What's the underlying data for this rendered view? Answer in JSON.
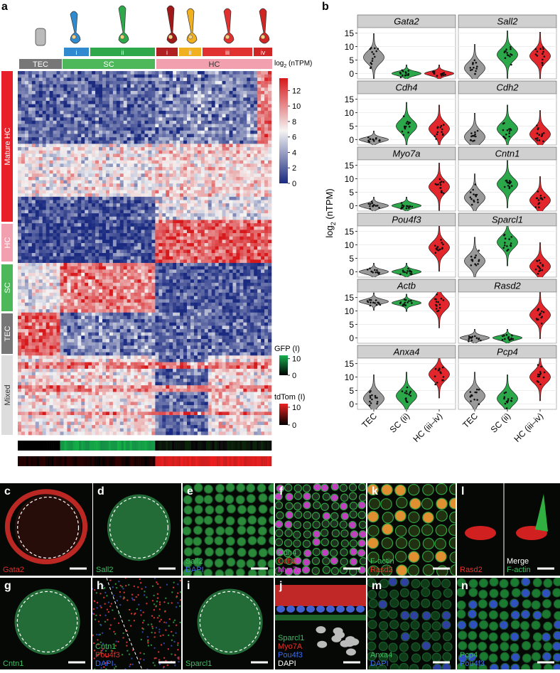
{
  "panel_a": {
    "label": "a",
    "top_groups": [
      "TEC",
      "SC",
      "HC"
    ],
    "sub_groups": [
      "i",
      "ii",
      "i",
      "ii",
      "iii",
      "iv"
    ],
    "row_groups": [
      "Mature HC",
      "HC",
      "SC",
      "TEC",
      "Mixed"
    ],
    "colorbar": {
      "title_main": "log",
      "title_sub": "2",
      "title_rest": " (nTPM)",
      "ticks": [
        0,
        2,
        4,
        6,
        8,
        10,
        12
      ],
      "lim": [
        0,
        13.6
      ]
    },
    "gfp": {
      "title": "GFP (I)",
      "ticks": [
        0,
        10
      ],
      "lim": [
        0,
        12
      ]
    },
    "tdtom": {
      "title": "tdTom (I)",
      "ticks": [
        0,
        10
      ],
      "lim": [
        0,
        12
      ]
    }
  },
  "panel_b": {
    "label": "b",
    "y_label_main": "log",
    "y_label_sub": "2",
    "y_label_rest": " (nTPM)",
    "yticks": [
      0,
      5,
      10,
      15
    ],
    "ylim": [
      -2,
      17
    ],
    "groups": [
      "TEC",
      "SC (ii)",
      "HC (iii–iv)"
    ],
    "colors": [
      "#9a9a9a",
      "#2ba84a",
      "#e3262b"
    ],
    "genes": [
      {
        "name": "Gata2",
        "medians": [
          6,
          0,
          0
        ]
      },
      {
        "name": "Sall2",
        "medians": [
          2,
          7,
          6.5
        ]
      },
      {
        "name": "Cdh4",
        "medians": [
          0,
          5,
          4
        ]
      },
      {
        "name": "Cdh2",
        "medians": [
          1,
          4,
          2
        ]
      },
      {
        "name": "Myo7a",
        "medians": [
          0,
          0,
          7
        ]
      },
      {
        "name": "Cntn1",
        "medians": [
          3,
          8,
          2
        ]
      },
      {
        "name": "Pou4f3",
        "medians": [
          0,
          0,
          9
        ]
      },
      {
        "name": "Sparcl1",
        "medians": [
          4,
          11,
          2
        ]
      },
      {
        "name": "Actb",
        "medians": [
          13.5,
          13,
          12.5
        ]
      },
      {
        "name": "Rasd2",
        "medians": [
          0,
          0,
          8.5
        ]
      },
      {
        "name": "Anxa4",
        "medians": [
          2,
          3,
          11
        ]
      },
      {
        "name": "Pcp4",
        "medians": [
          3,
          2,
          10
        ]
      }
    ]
  },
  "micrographs": [
    {
      "label": "c",
      "stains": [
        {
          "text": "Gata2",
          "color": "#e8302a"
        }
      ]
    },
    {
      "label": "d",
      "stains": [
        {
          "text": "Sall2",
          "color": "#3cc060"
        }
      ]
    },
    {
      "label": "e",
      "stains": [
        {
          "text": "Sall2",
          "color": "#3cc060"
        },
        {
          "text": "DAPI",
          "color": "#3c6cf0"
        }
      ]
    },
    {
      "label": "f",
      "stains": [
        {
          "text": "Cdh4",
          "color": "#3cc060"
        },
        {
          "text": "Cdh2",
          "color": "#e8302a"
        },
        {
          "text": "Myo7a",
          "color": "#e040e0"
        }
      ]
    },
    {
      "label": "k",
      "stains": [
        {
          "text": "F-actin",
          "color": "#3cc060"
        },
        {
          "text": "Rasd2",
          "color": "#e8302a"
        }
      ]
    },
    {
      "label": "l",
      "stains": [
        {
          "text": "Rasd2",
          "color": "#e8302a"
        }
      ],
      "stains_right": [
        {
          "text": "Merge",
          "color": "#ffffff"
        },
        {
          "text": "F-actin",
          "color": "#3cc060"
        }
      ]
    },
    {
      "label": "g",
      "stains": [
        {
          "text": "Cntn1",
          "color": "#3cc060"
        }
      ]
    },
    {
      "label": "h",
      "stains": [
        {
          "text": "Cntn1",
          "color": "#3cc060"
        },
        {
          "text": "Pou4f3",
          "color": "#e8302a"
        },
        {
          "text": "DAPI",
          "color": "#3c6cf0"
        }
      ]
    },
    {
      "label": "i",
      "stains": [
        {
          "text": "Sparcl1",
          "color": "#3cc060"
        }
      ]
    },
    {
      "label": "j",
      "stains": [
        {
          "text": "Sparcl1",
          "color": "#3cc060"
        },
        {
          "text": "Myo7A",
          "color": "#e8302a"
        },
        {
          "text": "Pou4f3",
          "color": "#3c6cf0"
        },
        {
          "text": "DAPI",
          "color": "#ffffff"
        }
      ]
    },
    {
      "label": "m",
      "stains": [
        {
          "text": "Anxa4",
          "color": "#3cc060"
        },
        {
          "text": "DAPI",
          "color": "#3c6cf0"
        }
      ]
    },
    {
      "label": "n",
      "stains": [
        {
          "text": "Pcp4",
          "color": "#3cc060"
        },
        {
          "text": "Pou4f3",
          "color": "#3c6cf0"
        }
      ]
    }
  ]
}
